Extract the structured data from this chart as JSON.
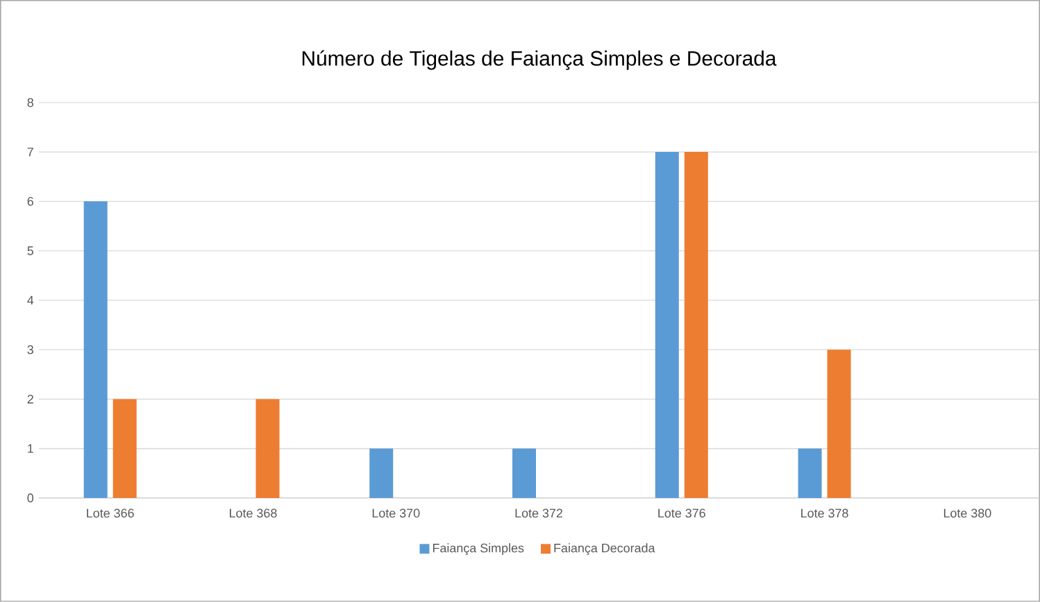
{
  "chart_data": {
    "type": "bar",
    "title": "Número de Tigelas de Faiança Simples e Decorada",
    "categories": [
      "Lote 366",
      "Lote 368",
      "Lote 370",
      "Lote 372",
      "Lote 376",
      "Lote 378",
      "Lote 380"
    ],
    "series": [
      {
        "name": "Faiança Simples",
        "color": "#5b9bd5",
        "values": [
          6,
          0,
          1,
          1,
          7,
          1,
          0
        ]
      },
      {
        "name": "Faiança Decorada",
        "color": "#ed7d31",
        "values": [
          2,
          2,
          0,
          0,
          7,
          3,
          0
        ]
      }
    ],
    "ylim": [
      0,
      8
    ],
    "yticks": [
      0,
      1,
      2,
      3,
      4,
      5,
      6,
      7,
      8
    ],
    "grid": "y",
    "legend": "bottom"
  }
}
